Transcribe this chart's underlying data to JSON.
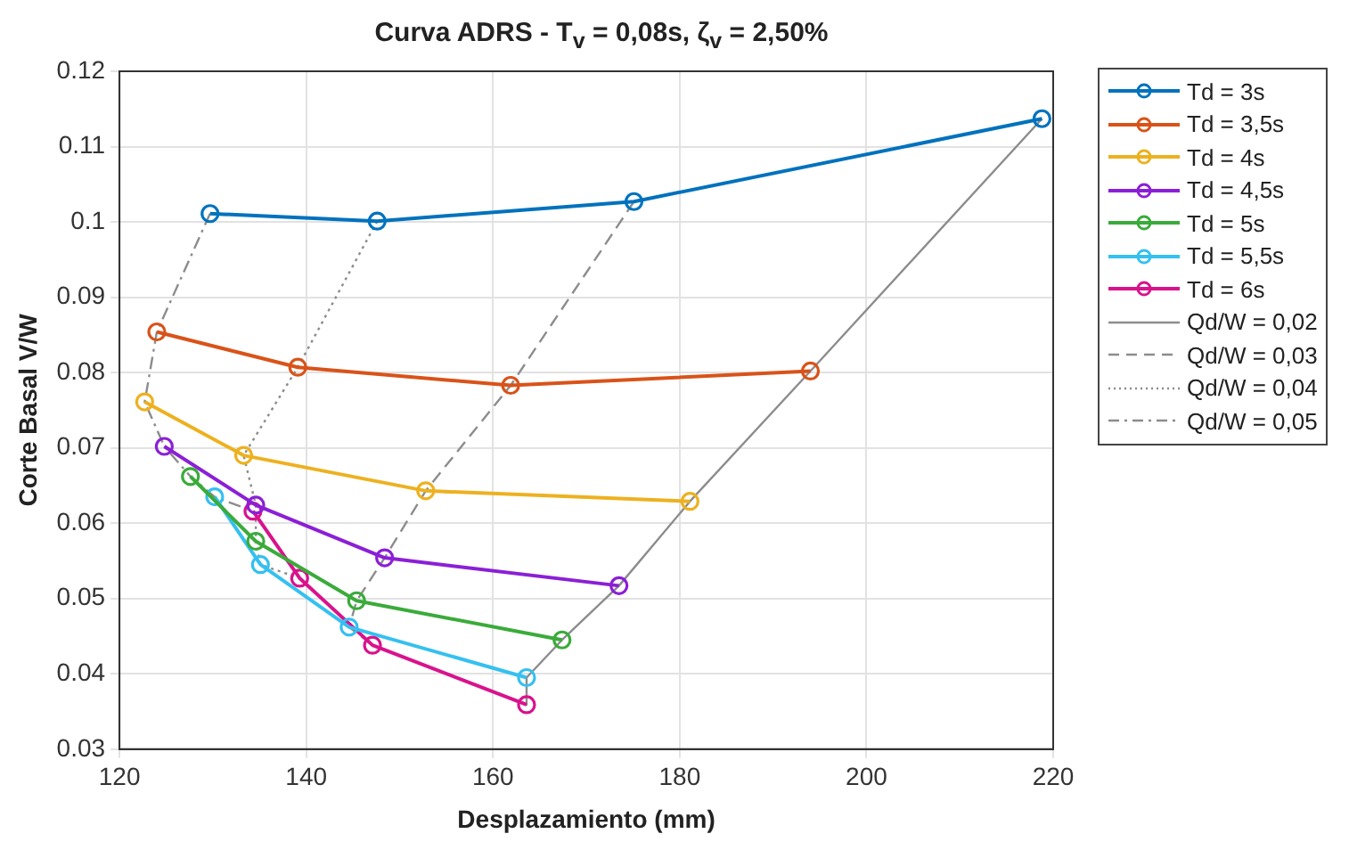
{
  "chart_data": {
    "type": "line",
    "title": "Curva ADRS - T$_{v}$ = 0,08s, ζ$_{v}$ = 2,50%",
    "xlabel": "Desplazamiento (mm)",
    "ylabel": "Corte Basal V/W",
    "xlim": [
      120,
      220
    ],
    "xticks": [
      120,
      140,
      160,
      180,
      200,
      220
    ],
    "ylim": [
      0.03,
      0.12
    ],
    "yticks": [
      0.03,
      0.04,
      0.05,
      0.06,
      0.07,
      0.08,
      0.09,
      0.1,
      0.11,
      0.12
    ],
    "grid": true,
    "legend": "right",
    "series": [
      {
        "name": "Td = 3s",
        "color": "#0072bd",
        "marker": "circle",
        "line_style": "solid",
        "x": [
          129.7,
          147.6,
          175.1,
          218.8
        ],
        "values": [
          0.1011,
          0.1001,
          0.1027,
          0.1137
        ]
      },
      {
        "name": "Td = 3,5s",
        "color": "#d95319",
        "marker": "circle",
        "line_style": "solid",
        "x": [
          124.0,
          139.1,
          161.9,
          194.0
        ],
        "values": [
          0.0854,
          0.0807,
          0.0783,
          0.0802
        ]
      },
      {
        "name": "Td = 4s",
        "color": "#edb120",
        "marker": "circle",
        "line_style": "solid",
        "x": [
          122.7,
          133.3,
          152.8,
          181.1
        ],
        "values": [
          0.0761,
          0.069,
          0.0643,
          0.0629
        ]
      },
      {
        "name": "Td = 4,5s",
        "color": "#8b1fd6",
        "marker": "circle",
        "line_style": "solid",
        "x": [
          124.8,
          134.6,
          148.4,
          173.5
        ],
        "values": [
          0.0702,
          0.0624,
          0.0554,
          0.0517
        ]
      },
      {
        "name": "Td = 5s",
        "color": "#3aab3a",
        "marker": "circle",
        "line_style": "solid",
        "x": [
          127.6,
          134.6,
          145.4,
          167.4
        ],
        "values": [
          0.0662,
          0.0576,
          0.0497,
          0.0445
        ]
      },
      {
        "name": "Td = 5,5s",
        "color": "#35c0f0",
        "marker": "circle",
        "line_style": "solid",
        "x": [
          130.2,
          135.1,
          144.6,
          163.6
        ],
        "values": [
          0.0635,
          0.0545,
          0.0462,
          0.0395
        ]
      },
      {
        "name": "Td = 6s",
        "color": "#d9128c",
        "marker": "circle",
        "line_style": "solid",
        "x": [
          134.3,
          139.3,
          147.1,
          163.6
        ],
        "values": [
          0.0616,
          0.0527,
          0.0438,
          0.0359
        ]
      },
      {
        "name": "Qd/W = 0,02",
        "color": "#8c8c8c",
        "marker": "none",
        "line_style": "solid",
        "x": [
          218.8,
          194.0,
          181.1,
          173.5,
          167.4,
          163.6,
          163.6
        ],
        "values": [
          0.1137,
          0.0802,
          0.0629,
          0.0517,
          0.0445,
          0.0395,
          0.0359
        ]
      },
      {
        "name": "Qd/W = 0,03",
        "color": "#8c8c8c",
        "marker": "none",
        "line_style": "dashed",
        "x": [
          175.1,
          161.9,
          152.8,
          148.4,
          145.4,
          144.6,
          147.1
        ],
        "values": [
          0.1027,
          0.0783,
          0.0643,
          0.0554,
          0.0497,
          0.0462,
          0.0438
        ]
      },
      {
        "name": "Qd/W = 0,04",
        "color": "#8c8c8c",
        "marker": "none",
        "line_style": "dotted",
        "x": [
          147.6,
          139.1,
          133.3,
          134.6,
          134.6,
          135.1,
          139.3
        ],
        "values": [
          0.1001,
          0.0807,
          0.069,
          0.0624,
          0.0576,
          0.0545,
          0.0527
        ]
      },
      {
        "name": "Qd/W = 0,05",
        "color": "#8c8c8c",
        "marker": "none",
        "line_style": "dashdot",
        "x": [
          129.7,
          124.0,
          122.7,
          124.8,
          127.6,
          130.2,
          134.3
        ],
        "values": [
          0.1011,
          0.0854,
          0.0761,
          0.0702,
          0.0662,
          0.0635,
          0.0616
        ]
      }
    ]
  }
}
